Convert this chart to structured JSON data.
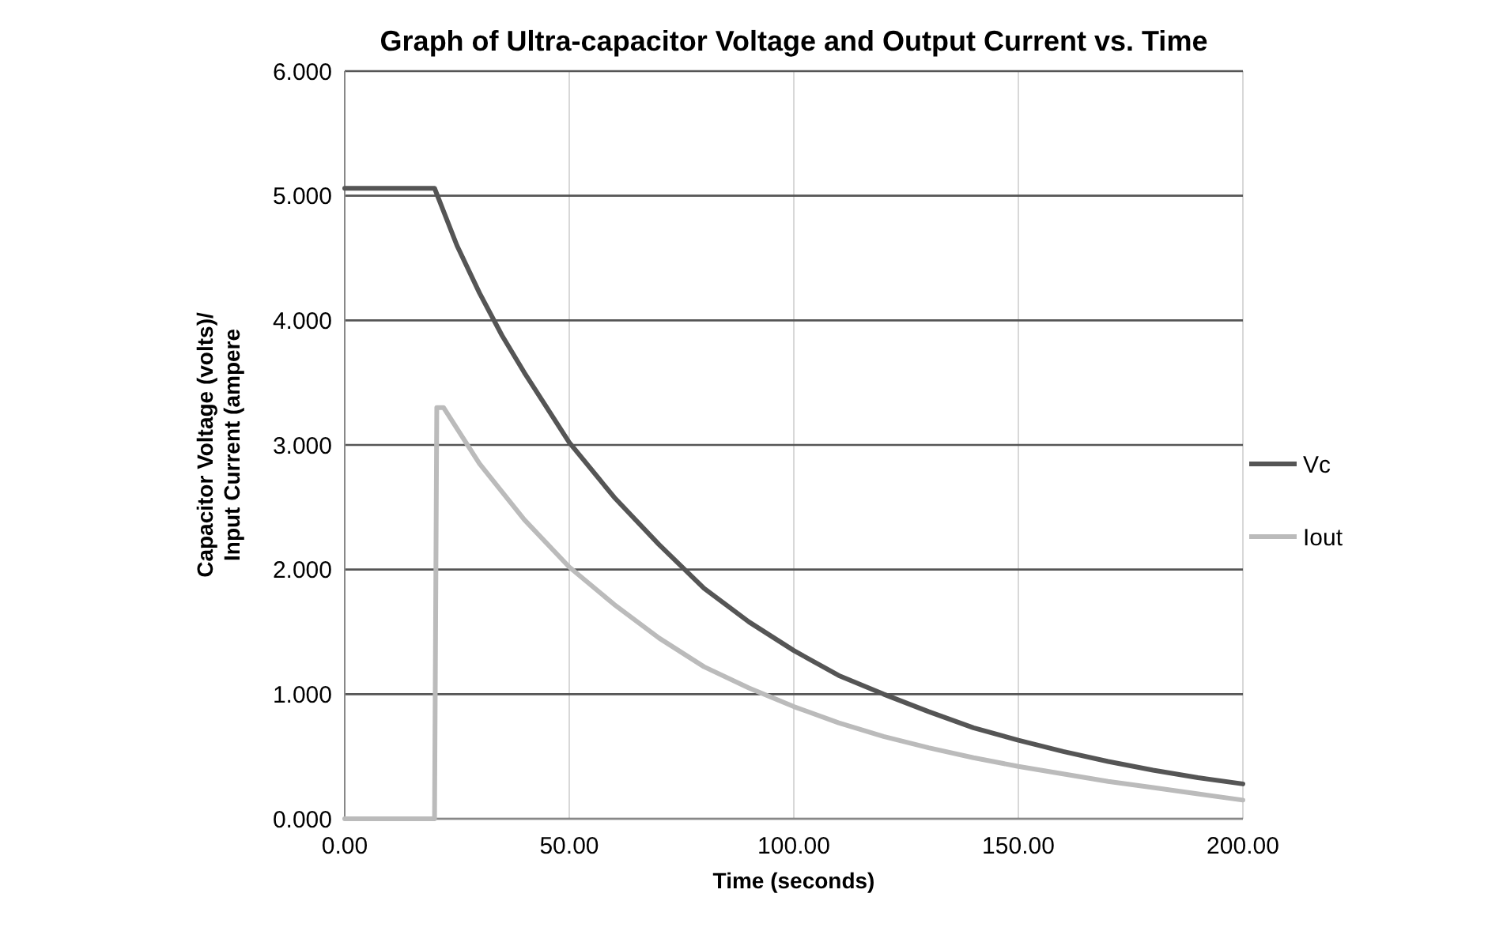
{
  "chart_data": {
    "type": "line",
    "title": "Graph of Ultra-capacitor Voltage and Output Current vs. Time",
    "xlabel": "Time (seconds)",
    "ylabel": "Capacitor Voltage (volts)/\nInput Current (ampere",
    "xlim": [
      0,
      200
    ],
    "xticks": [
      {
        "value": 0,
        "label": "0.00"
      },
      {
        "value": 50,
        "label": "50.00"
      },
      {
        "value": 100,
        "label": "100.00"
      },
      {
        "value": 150,
        "label": "150.00"
      },
      {
        "value": 200,
        "label": "200.00"
      }
    ],
    "ylim": [
      0,
      6
    ],
    "yticks": [
      {
        "value": 0,
        "label": "0.000"
      },
      {
        "value": 1,
        "label": "1.000"
      },
      {
        "value": 2,
        "label": "2.000"
      },
      {
        "value": 3,
        "label": "3.000"
      },
      {
        "value": 4,
        "label": "4.000"
      },
      {
        "value": 5,
        "label": "5.000"
      },
      {
        "value": 6,
        "label": "6.000"
      }
    ],
    "grid": true,
    "legend": "right",
    "marker": "none",
    "series": [
      {
        "name": "Vc",
        "color": "#555555",
        "x": [
          0,
          20,
          25,
          30,
          35,
          40,
          50,
          60,
          70,
          80,
          90,
          100,
          110,
          120,
          130,
          140,
          150,
          160,
          170,
          180,
          190,
          200
        ],
        "values": [
          5.06,
          5.06,
          4.6,
          4.22,
          3.88,
          3.58,
          3.02,
          2.58,
          2.2,
          1.85,
          1.58,
          1.35,
          1.15,
          1.0,
          0.86,
          0.73,
          0.63,
          0.54,
          0.46,
          0.39,
          0.33,
          0.28
        ]
      },
      {
        "name": "Iout",
        "color": "#bbbbbb",
        "x": [
          0,
          20,
          20.5,
          22,
          30,
          40,
          50,
          60,
          70,
          80,
          90,
          100,
          110,
          120,
          130,
          140,
          150,
          160,
          170,
          180,
          190,
          200
        ],
        "values": [
          0,
          0,
          3.3,
          3.3,
          2.85,
          2.4,
          2.02,
          1.72,
          1.45,
          1.22,
          1.05,
          0.9,
          0.77,
          0.66,
          0.57,
          0.49,
          0.42,
          0.36,
          0.3,
          0.25,
          0.2,
          0.15
        ]
      }
    ]
  }
}
